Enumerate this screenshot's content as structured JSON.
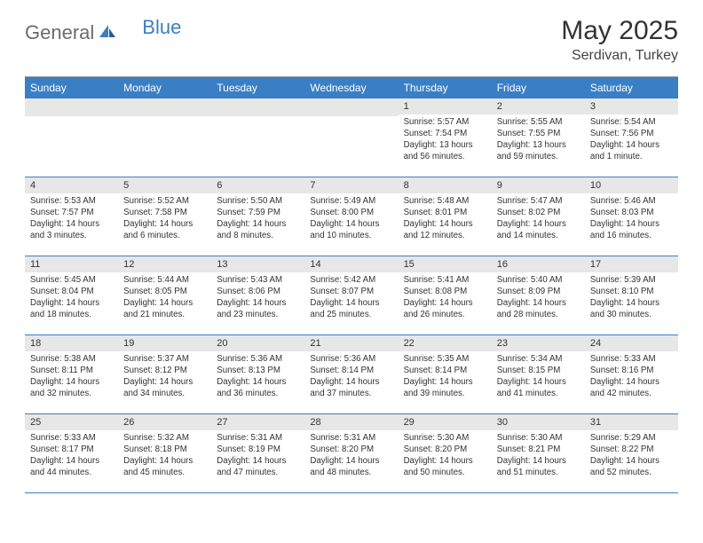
{
  "brand": {
    "general": "General",
    "blue": "Blue"
  },
  "header": {
    "month": "May 2025",
    "location": "Serdivan, Turkey"
  },
  "colors": {
    "headerBar": "#3a7fc4",
    "dayNumBg": "#e7e7e7",
    "weekBorder": "#3a7fc4",
    "logoBlue": "#3a7fc4",
    "logoGray": "#6b6b6b"
  },
  "dayNames": [
    "Sunday",
    "Monday",
    "Tuesday",
    "Wednesday",
    "Thursday",
    "Friday",
    "Saturday"
  ],
  "weeks": [
    [
      null,
      null,
      null,
      null,
      {
        "n": "1",
        "sunrise": "5:57 AM",
        "sunset": "7:54 PM",
        "daylight": "13 hours and 56 minutes."
      },
      {
        "n": "2",
        "sunrise": "5:55 AM",
        "sunset": "7:55 PM",
        "daylight": "13 hours and 59 minutes."
      },
      {
        "n": "3",
        "sunrise": "5:54 AM",
        "sunset": "7:56 PM",
        "daylight": "14 hours and 1 minute."
      }
    ],
    [
      {
        "n": "4",
        "sunrise": "5:53 AM",
        "sunset": "7:57 PM",
        "daylight": "14 hours and 3 minutes."
      },
      {
        "n": "5",
        "sunrise": "5:52 AM",
        "sunset": "7:58 PM",
        "daylight": "14 hours and 6 minutes."
      },
      {
        "n": "6",
        "sunrise": "5:50 AM",
        "sunset": "7:59 PM",
        "daylight": "14 hours and 8 minutes."
      },
      {
        "n": "7",
        "sunrise": "5:49 AM",
        "sunset": "8:00 PM",
        "daylight": "14 hours and 10 minutes."
      },
      {
        "n": "8",
        "sunrise": "5:48 AM",
        "sunset": "8:01 PM",
        "daylight": "14 hours and 12 minutes."
      },
      {
        "n": "9",
        "sunrise": "5:47 AM",
        "sunset": "8:02 PM",
        "daylight": "14 hours and 14 minutes."
      },
      {
        "n": "10",
        "sunrise": "5:46 AM",
        "sunset": "8:03 PM",
        "daylight": "14 hours and 16 minutes."
      }
    ],
    [
      {
        "n": "11",
        "sunrise": "5:45 AM",
        "sunset": "8:04 PM",
        "daylight": "14 hours and 18 minutes."
      },
      {
        "n": "12",
        "sunrise": "5:44 AM",
        "sunset": "8:05 PM",
        "daylight": "14 hours and 21 minutes."
      },
      {
        "n": "13",
        "sunrise": "5:43 AM",
        "sunset": "8:06 PM",
        "daylight": "14 hours and 23 minutes."
      },
      {
        "n": "14",
        "sunrise": "5:42 AM",
        "sunset": "8:07 PM",
        "daylight": "14 hours and 25 minutes."
      },
      {
        "n": "15",
        "sunrise": "5:41 AM",
        "sunset": "8:08 PM",
        "daylight": "14 hours and 26 minutes."
      },
      {
        "n": "16",
        "sunrise": "5:40 AM",
        "sunset": "8:09 PM",
        "daylight": "14 hours and 28 minutes."
      },
      {
        "n": "17",
        "sunrise": "5:39 AM",
        "sunset": "8:10 PM",
        "daylight": "14 hours and 30 minutes."
      }
    ],
    [
      {
        "n": "18",
        "sunrise": "5:38 AM",
        "sunset": "8:11 PM",
        "daylight": "14 hours and 32 minutes."
      },
      {
        "n": "19",
        "sunrise": "5:37 AM",
        "sunset": "8:12 PM",
        "daylight": "14 hours and 34 minutes."
      },
      {
        "n": "20",
        "sunrise": "5:36 AM",
        "sunset": "8:13 PM",
        "daylight": "14 hours and 36 minutes."
      },
      {
        "n": "21",
        "sunrise": "5:36 AM",
        "sunset": "8:14 PM",
        "daylight": "14 hours and 37 minutes."
      },
      {
        "n": "22",
        "sunrise": "5:35 AM",
        "sunset": "8:14 PM",
        "daylight": "14 hours and 39 minutes."
      },
      {
        "n": "23",
        "sunrise": "5:34 AM",
        "sunset": "8:15 PM",
        "daylight": "14 hours and 41 minutes."
      },
      {
        "n": "24",
        "sunrise": "5:33 AM",
        "sunset": "8:16 PM",
        "daylight": "14 hours and 42 minutes."
      }
    ],
    [
      {
        "n": "25",
        "sunrise": "5:33 AM",
        "sunset": "8:17 PM",
        "daylight": "14 hours and 44 minutes."
      },
      {
        "n": "26",
        "sunrise": "5:32 AM",
        "sunset": "8:18 PM",
        "daylight": "14 hours and 45 minutes."
      },
      {
        "n": "27",
        "sunrise": "5:31 AM",
        "sunset": "8:19 PM",
        "daylight": "14 hours and 47 minutes."
      },
      {
        "n": "28",
        "sunrise": "5:31 AM",
        "sunset": "8:20 PM",
        "daylight": "14 hours and 48 minutes."
      },
      {
        "n": "29",
        "sunrise": "5:30 AM",
        "sunset": "8:20 PM",
        "daylight": "14 hours and 50 minutes."
      },
      {
        "n": "30",
        "sunrise": "5:30 AM",
        "sunset": "8:21 PM",
        "daylight": "14 hours and 51 minutes."
      },
      {
        "n": "31",
        "sunrise": "5:29 AM",
        "sunset": "8:22 PM",
        "daylight": "14 hours and 52 minutes."
      }
    ]
  ],
  "labels": {
    "sunrise": "Sunrise: ",
    "sunset": "Sunset: ",
    "daylight": "Daylight: "
  }
}
